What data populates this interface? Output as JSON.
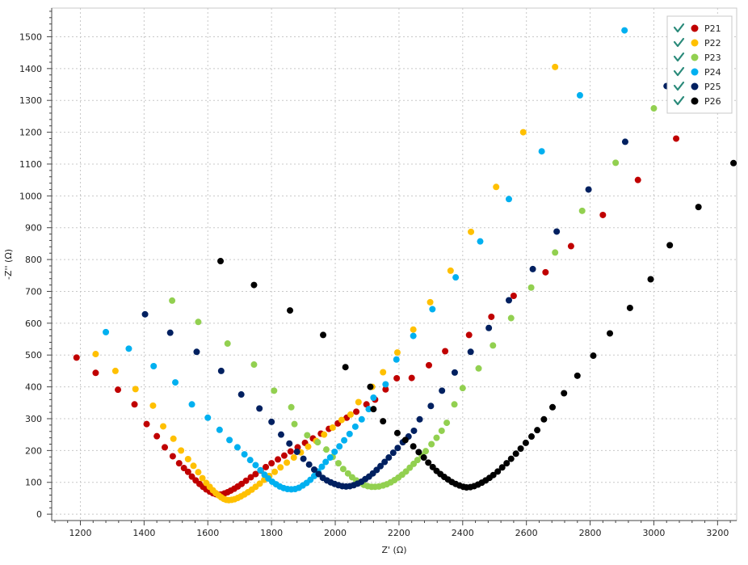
{
  "chart_data": {
    "type": "scatter",
    "title": "",
    "xlabel": "Z' (Ω)",
    "ylabel": "-Z'' (Ω)",
    "xlim": [
      1110,
      3260
    ],
    "ylim": [
      -20,
      1590
    ],
    "xticks": [
      1200,
      1400,
      1600,
      1800,
      2000,
      2200,
      2400,
      2600,
      2800,
      3000,
      3200
    ],
    "yticks": [
      0,
      100,
      200,
      300,
      400,
      500,
      600,
      700,
      800,
      900,
      1000,
      1100,
      1200,
      1300,
      1400,
      1500
    ],
    "grid": true,
    "legend_position": "top-right",
    "series": [
      {
        "name": "P21",
        "color": "#c00000",
        "points": [
          [
            1188,
            492
          ],
          [
            1248,
            444
          ],
          [
            1318,
            391
          ],
          [
            1370,
            345
          ],
          [
            1408,
            283
          ],
          [
            1440,
            245
          ],
          [
            1465,
            210
          ],
          [
            1490,
            182
          ],
          [
            1510,
            160
          ],
          [
            1525,
            145
          ],
          [
            1538,
            133
          ],
          [
            1550,
            118
          ],
          [
            1562,
            106
          ],
          [
            1574,
            95
          ],
          [
            1585,
            86
          ],
          [
            1595,
            78
          ],
          [
            1606,
            71
          ],
          [
            1616,
            66
          ],
          [
            1625,
            63
          ],
          [
            1634,
            61
          ],
          [
            1642,
            62
          ],
          [
            1652,
            65
          ],
          [
            1662,
            69
          ],
          [
            1672,
            74
          ],
          [
            1683,
            80
          ],
          [
            1694,
            87
          ],
          [
            1706,
            95
          ],
          [
            1720,
            105
          ],
          [
            1735,
            116
          ],
          [
            1750,
            126
          ],
          [
            1766,
            137
          ],
          [
            1782,
            148
          ],
          [
            1800,
            160
          ],
          [
            1820,
            172
          ],
          [
            1840,
            184
          ],
          [
            1860,
            197
          ],
          [
            1882,
            210
          ],
          [
            1905,
            224
          ],
          [
            1930,
            238
          ],
          [
            1955,
            253
          ],
          [
            1980,
            268
          ],
          [
            2008,
            285
          ],
          [
            2036,
            303
          ],
          [
            2066,
            322
          ],
          [
            2098,
            345
          ],
          [
            2125,
            360
          ],
          [
            2158,
            392
          ],
          [
            2193,
            427
          ],
          [
            2240,
            428
          ],
          [
            2294,
            468
          ],
          [
            2345,
            512
          ],
          [
            2420,
            563
          ],
          [
            2490,
            620
          ],
          [
            2560,
            686
          ],
          [
            2660,
            760
          ],
          [
            2740,
            842
          ],
          [
            2840,
            940
          ],
          [
            2950,
            1050
          ],
          [
            3070,
            1180
          ]
        ]
      },
      {
        "name": "P22",
        "color": "#ffc000",
        "points": [
          [
            1248,
            503
          ],
          [
            1310,
            450
          ],
          [
            1373,
            393
          ],
          [
            1428,
            341
          ],
          [
            1460,
            276
          ],
          [
            1492,
            237
          ],
          [
            1516,
            200
          ],
          [
            1538,
            173
          ],
          [
            1555,
            152
          ],
          [
            1570,
            132
          ],
          [
            1583,
            113
          ],
          [
            1595,
            98
          ],
          [
            1606,
            86
          ],
          [
            1616,
            75
          ],
          [
            1625,
            66
          ],
          [
            1634,
            59
          ],
          [
            1642,
            53
          ],
          [
            1650,
            48
          ],
          [
            1658,
            45
          ],
          [
            1666,
            44
          ],
          [
            1675,
            45
          ],
          [
            1684,
            47
          ],
          [
            1694,
            51
          ],
          [
            1704,
            56
          ],
          [
            1715,
            62
          ],
          [
            1726,
            69
          ],
          [
            1738,
            77
          ],
          [
            1750,
            86
          ],
          [
            1763,
            96
          ],
          [
            1777,
            108
          ],
          [
            1793,
            120
          ],
          [
            1810,
            133
          ],
          [
            1828,
            147
          ],
          [
            1848,
            162
          ],
          [
            1870,
            178
          ],
          [
            1892,
            194
          ],
          [
            1915,
            212
          ],
          [
            1940,
            230
          ],
          [
            1965,
            250
          ],
          [
            1992,
            272
          ],
          [
            2020,
            296
          ],
          [
            2048,
            313
          ],
          [
            2073,
            352
          ],
          [
            2116,
            400
          ],
          [
            2150,
            446
          ],
          [
            2195,
            508
          ],
          [
            2245,
            580
          ],
          [
            2298,
            666
          ],
          [
            2362,
            765
          ],
          [
            2426,
            887
          ],
          [
            2505,
            1028
          ],
          [
            2590,
            1200
          ],
          [
            2690,
            1405
          ]
        ]
      },
      {
        "name": "P23",
        "color": "#92d050",
        "points": [
          [
            1488,
            671
          ],
          [
            1570,
            604
          ],
          [
            1662,
            536
          ],
          [
            1745,
            470
          ],
          [
            1808,
            388
          ],
          [
            1862,
            336
          ],
          [
            1872,
            283
          ],
          [
            1912,
            248
          ],
          [
            1945,
            226
          ],
          [
            1972,
            203
          ],
          [
            1992,
            180
          ],
          [
            2010,
            160
          ],
          [
            2025,
            142
          ],
          [
            2040,
            128
          ],
          [
            2053,
            116
          ],
          [
            2066,
            106
          ],
          [
            2078,
            98
          ],
          [
            2090,
            92
          ],
          [
            2102,
            88
          ],
          [
            2114,
            86
          ],
          [
            2125,
            86
          ],
          [
            2137,
            87
          ],
          [
            2150,
            90
          ],
          [
            2162,
            94
          ],
          [
            2174,
            100
          ],
          [
            2186,
            107
          ],
          [
            2198,
            115
          ],
          [
            2210,
            124
          ],
          [
            2222,
            134
          ],
          [
            2234,
            146
          ],
          [
            2246,
            158
          ],
          [
            2258,
            170
          ],
          [
            2272,
            184
          ],
          [
            2284,
            198
          ],
          [
            2302,
            220
          ],
          [
            2318,
            240
          ],
          [
            2334,
            262
          ],
          [
            2350,
            287
          ],
          [
            2374,
            345
          ],
          [
            2400,
            396
          ],
          [
            2450,
            458
          ],
          [
            2495,
            530
          ],
          [
            2552,
            616
          ],
          [
            2615,
            712
          ],
          [
            2690,
            822
          ],
          [
            2775,
            953
          ],
          [
            2880,
            1104
          ],
          [
            3000,
            1275
          ],
          [
            3060,
            1340
          ]
        ]
      },
      {
        "name": "P24",
        "color": "#00b0f0",
        "points": [
          [
            1280,
            572
          ],
          [
            1352,
            520
          ],
          [
            1430,
            465
          ],
          [
            1498,
            414
          ],
          [
            1550,
            345
          ],
          [
            1600,
            303
          ],
          [
            1637,
            265
          ],
          [
            1668,
            233
          ],
          [
            1693,
            210
          ],
          [
            1715,
            188
          ],
          [
            1733,
            170
          ],
          [
            1750,
            154
          ],
          [
            1765,
            138
          ],
          [
            1778,
            124
          ],
          [
            1790,
            112
          ],
          [
            1802,
            102
          ],
          [
            1814,
            94
          ],
          [
            1826,
            87
          ],
          [
            1838,
            82
          ],
          [
            1850,
            79
          ],
          [
            1862,
            78
          ],
          [
            1874,
            79
          ],
          [
            1886,
            83
          ],
          [
            1898,
            90
          ],
          [
            1910,
            98
          ],
          [
            1922,
            108
          ],
          [
            1934,
            120
          ],
          [
            1946,
            134
          ],
          [
            1958,
            149
          ],
          [
            1970,
            164
          ],
          [
            1984,
            178
          ],
          [
            1998,
            196
          ],
          [
            2013,
            213
          ],
          [
            2028,
            232
          ],
          [
            2045,
            252
          ],
          [
            2063,
            275
          ],
          [
            2083,
            298
          ],
          [
            2105,
            330
          ],
          [
            2120,
            366
          ],
          [
            2158,
            408
          ],
          [
            2192,
            486
          ],
          [
            2245,
            560
          ],
          [
            2305,
            644
          ],
          [
            2378,
            744
          ],
          [
            2455,
            857
          ],
          [
            2545,
            990
          ],
          [
            2648,
            1140
          ],
          [
            2768,
            1316
          ],
          [
            2908,
            1520
          ]
        ]
      },
      {
        "name": "P25",
        "color": "#002060",
        "points": [
          [
            1403,
            628
          ],
          [
            1482,
            570
          ],
          [
            1565,
            510
          ],
          [
            1642,
            450
          ],
          [
            1705,
            376
          ],
          [
            1762,
            332
          ],
          [
            1800,
            290
          ],
          [
            1830,
            250
          ],
          [
            1856,
            222
          ],
          [
            1880,
            196
          ],
          [
            1900,
            174
          ],
          [
            1918,
            156
          ],
          [
            1934,
            140
          ],
          [
            1948,
            126
          ],
          [
            1961,
            114
          ],
          [
            1974,
            106
          ],
          [
            1986,
            100
          ],
          [
            1998,
            95
          ],
          [
            2010,
            91
          ],
          [
            2022,
            88
          ],
          [
            2034,
            87
          ],
          [
            2046,
            88
          ],
          [
            2058,
            91
          ],
          [
            2070,
            96
          ],
          [
            2082,
            102
          ],
          [
            2094,
            110
          ],
          [
            2106,
            118
          ],
          [
            2118,
            128
          ],
          [
            2130,
            139
          ],
          [
            2142,
            151
          ],
          [
            2155,
            164
          ],
          [
            2168,
            178
          ],
          [
            2182,
            193
          ],
          [
            2196,
            208
          ],
          [
            2212,
            226
          ],
          [
            2230,
            244
          ],
          [
            2247,
            262
          ],
          [
            2265,
            298
          ],
          [
            2300,
            340
          ],
          [
            2335,
            388
          ],
          [
            2375,
            445
          ],
          [
            2425,
            510
          ],
          [
            2482,
            585
          ],
          [
            2545,
            672
          ],
          [
            2620,
            770
          ],
          [
            2695,
            888
          ],
          [
            2795,
            1020
          ],
          [
            2910,
            1170
          ],
          [
            3040,
            1345
          ]
        ]
      },
      {
        "name": "P26",
        "color": "#000000",
        "points": [
          [
            1640,
            795
          ],
          [
            1745,
            720
          ],
          [
            1858,
            640
          ],
          [
            1962,
            563
          ],
          [
            2032,
            462
          ],
          [
            2110,
            400
          ],
          [
            2120,
            330
          ],
          [
            2150,
            292
          ],
          [
            2195,
            255
          ],
          [
            2220,
            233
          ],
          [
            2245,
            213
          ],
          [
            2262,
            195
          ],
          [
            2278,
            178
          ],
          [
            2292,
            162
          ],
          [
            2306,
            148
          ],
          [
            2318,
            136
          ],
          [
            2330,
            126
          ],
          [
            2342,
            117
          ],
          [
            2354,
            109
          ],
          [
            2366,
            101
          ],
          [
            2378,
            95
          ],
          [
            2390,
            90
          ],
          [
            2402,
            86
          ],
          [
            2412,
            84
          ],
          [
            2424,
            85
          ],
          [
            2436,
            88
          ],
          [
            2448,
            93
          ],
          [
            2460,
            99
          ],
          [
            2472,
            106
          ],
          [
            2484,
            114
          ],
          [
            2496,
            123
          ],
          [
            2510,
            134
          ],
          [
            2524,
            147
          ],
          [
            2538,
            160
          ],
          [
            2552,
            174
          ],
          [
            2567,
            190
          ],
          [
            2582,
            206
          ],
          [
            2598,
            224
          ],
          [
            2616,
            244
          ],
          [
            2634,
            264
          ],
          [
            2655,
            298
          ],
          [
            2682,
            336
          ],
          [
            2718,
            380
          ],
          [
            2760,
            435
          ],
          [
            2810,
            498
          ],
          [
            2862,
            568
          ],
          [
            2925,
            648
          ],
          [
            2990,
            738
          ],
          [
            3050,
            845
          ],
          [
            3140,
            965
          ],
          [
            3250,
            1103
          ]
        ]
      }
    ]
  }
}
